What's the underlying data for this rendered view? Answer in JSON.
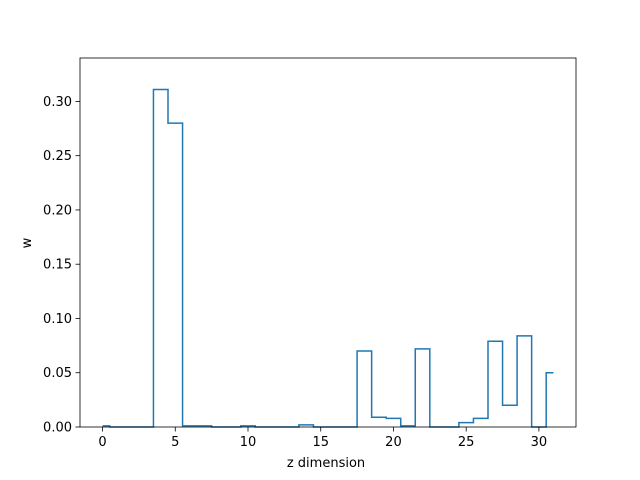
{
  "chart_data": {
    "type": "line",
    "drawstyle": "steps-mid",
    "title": "",
    "xlabel": "z dimension",
    "ylabel": "w",
    "xlim": [
      -1.55,
      32.55
    ],
    "ylim": [
      0,
      0.34
    ],
    "xticks": [
      0,
      5,
      10,
      15,
      20,
      25,
      30
    ],
    "xtick_labels": [
      "0",
      "5",
      "10",
      "15",
      "20",
      "25",
      "30"
    ],
    "yticks": [
      0.0,
      0.05,
      0.1,
      0.15,
      0.2,
      0.25,
      0.3
    ],
    "ytick_labels": [
      "0.00",
      "0.05",
      "0.10",
      "0.15",
      "0.20",
      "0.25",
      "0.30"
    ],
    "grid": false,
    "color": "#1f77b4",
    "x": [
      0,
      1,
      2,
      3,
      4,
      5,
      6,
      7,
      8,
      9,
      10,
      11,
      12,
      13,
      14,
      15,
      16,
      17,
      18,
      19,
      20,
      21,
      22,
      23,
      24,
      25,
      26,
      27,
      28,
      29,
      30,
      31
    ],
    "y": [
      0.001,
      0.0,
      0.0,
      0.0,
      0.311,
      0.28,
      0.001,
      0.001,
      0.0,
      0.0,
      0.001,
      0.0,
      0.0,
      0.0,
      0.002,
      0.0,
      0.0,
      0.0,
      0.07,
      0.009,
      0.008,
      0.001,
      0.072,
      0.0,
      0.0,
      0.004,
      0.008,
      0.079,
      0.02,
      0.084,
      0.0,
      0.05
    ]
  }
}
